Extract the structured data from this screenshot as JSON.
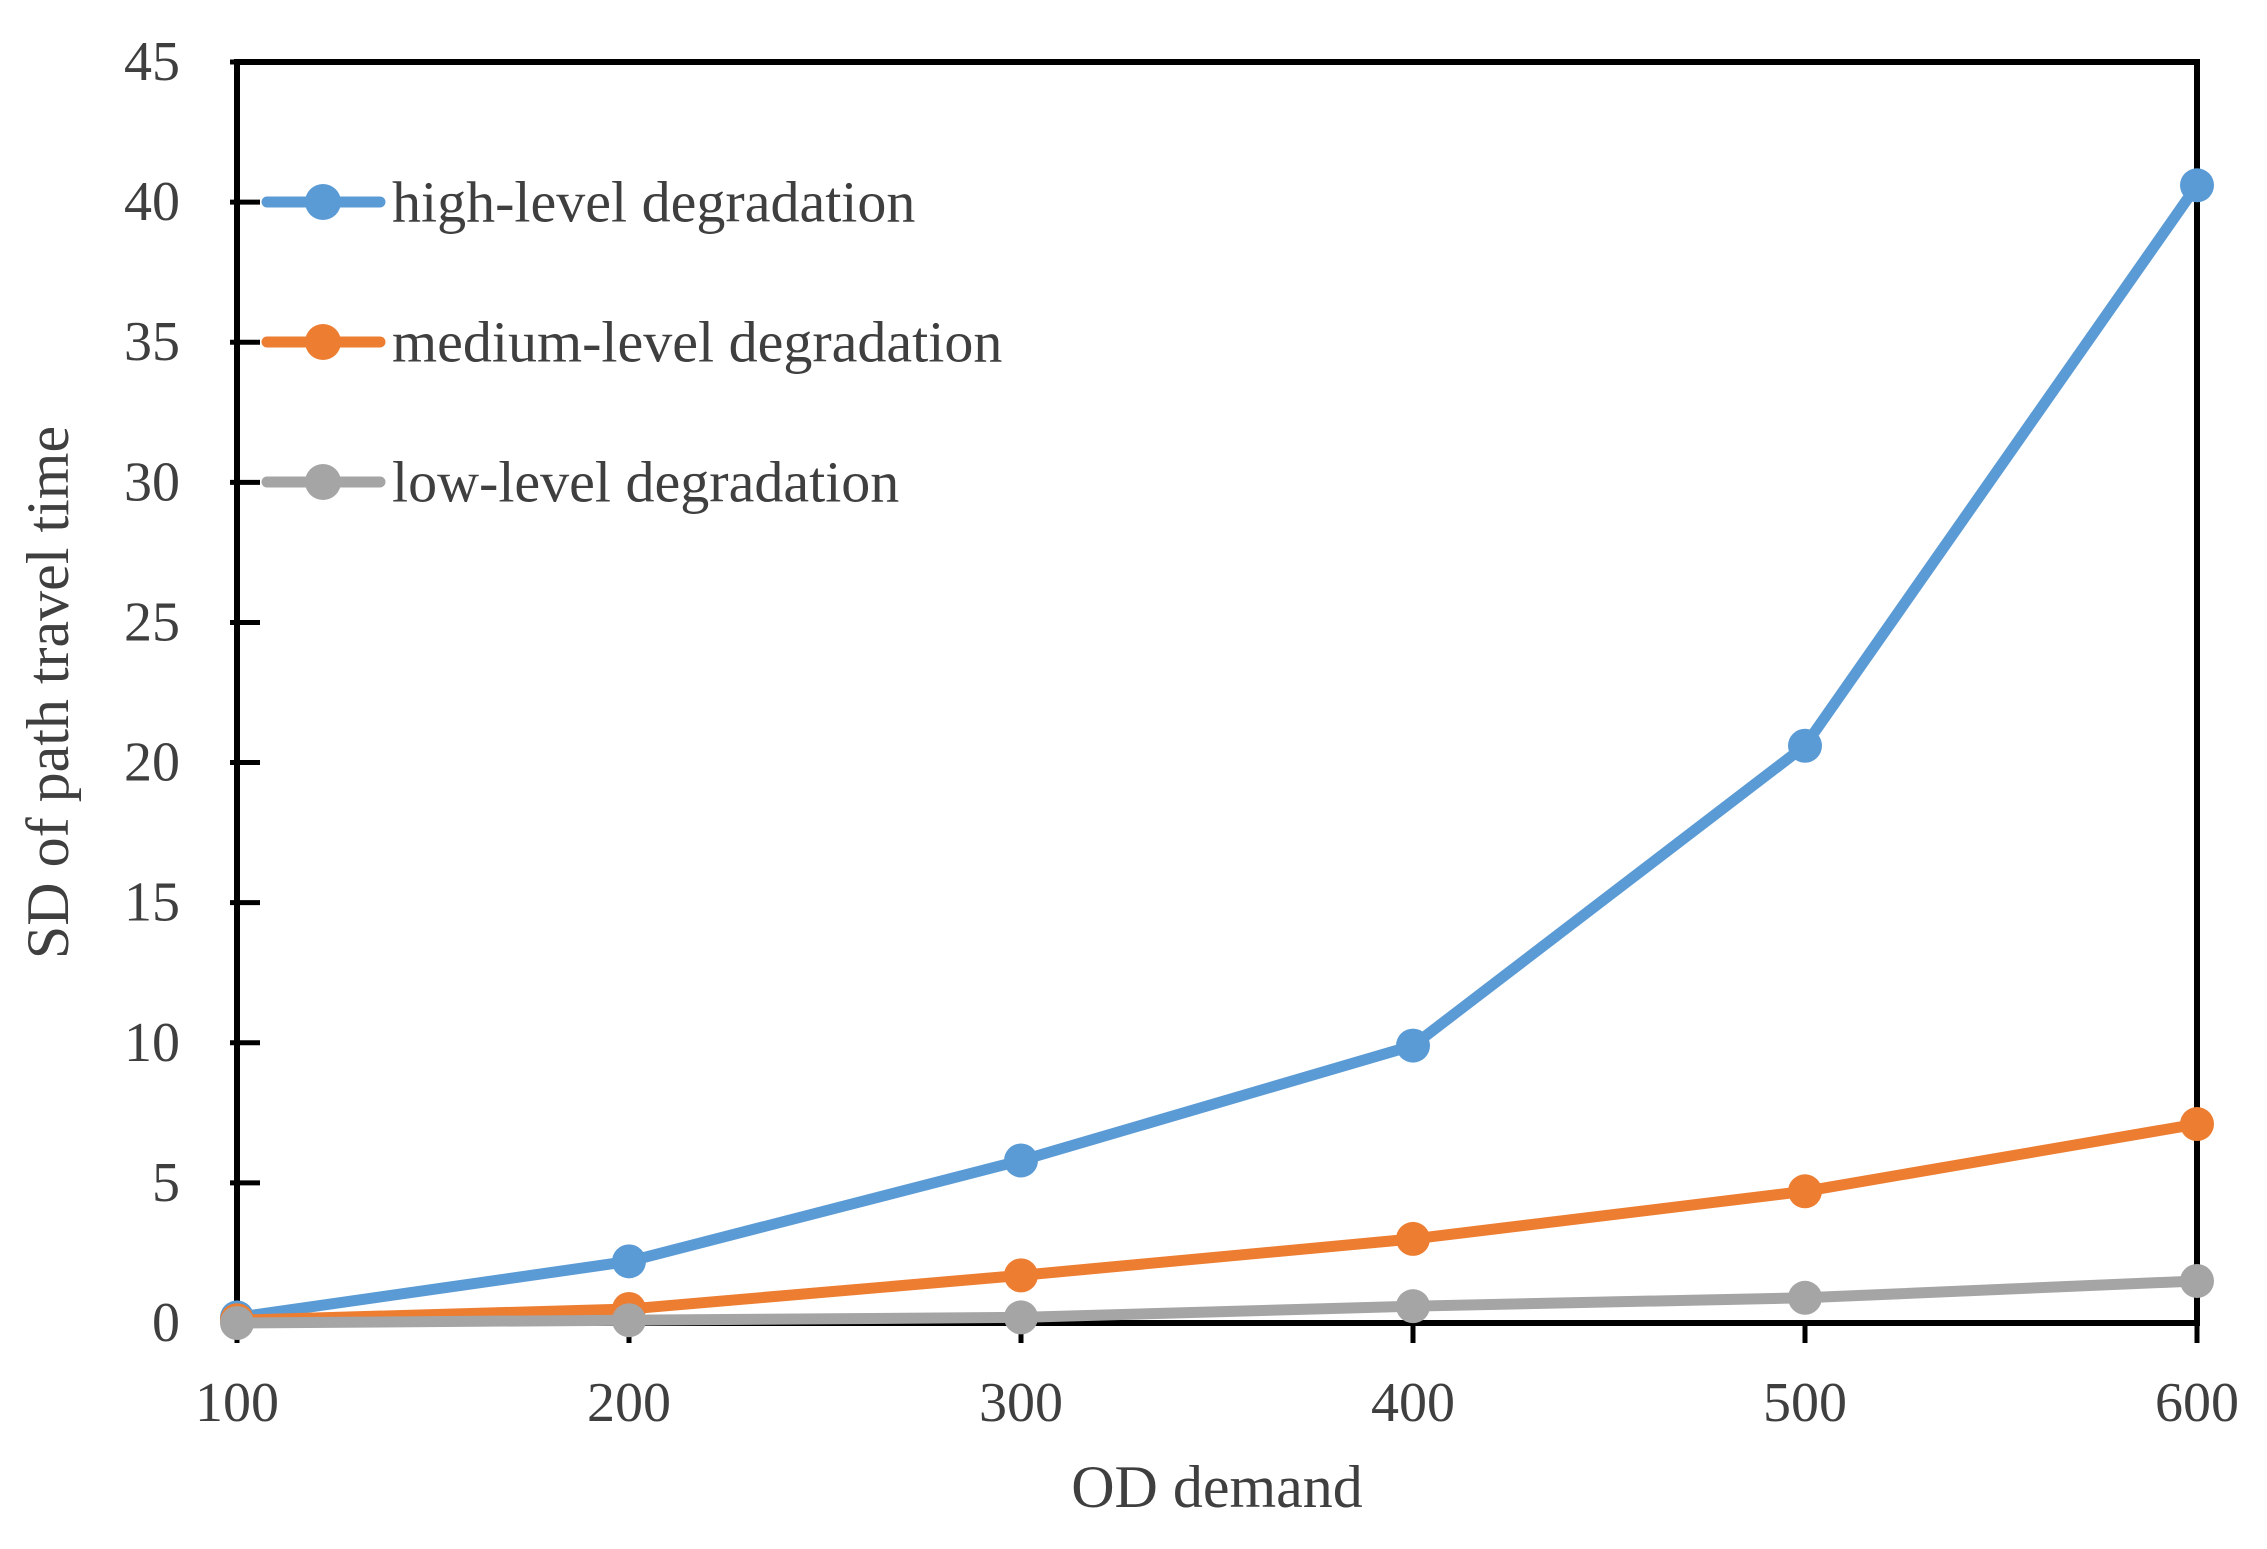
{
  "chart_data": {
    "type": "line",
    "title": "",
    "xlabel": "OD demand",
    "ylabel": "SD of path travel time",
    "x": [
      100,
      200,
      300,
      400,
      500,
      600
    ],
    "series": [
      {
        "name": "high-level degradation",
        "color": "#5B9BD5",
        "values": [
          0.2,
          2.2,
          5.8,
          9.9,
          20.6,
          40.6
        ]
      },
      {
        "name": "medium-level degradation",
        "color": "#ED7D31",
        "values": [
          0.1,
          0.5,
          1.7,
          3.0,
          4.7,
          7.1
        ]
      },
      {
        "name": "low-level degradation",
        "color": "#A5A5A5",
        "values": [
          0.0,
          0.1,
          0.2,
          0.6,
          0.9,
          1.5
        ]
      }
    ],
    "xlim": [
      100,
      600
    ],
    "ylim": [
      0,
      45
    ],
    "x_ticks": [
      100,
      200,
      300,
      400,
      500,
      600
    ],
    "y_ticks": [
      0,
      5,
      10,
      15,
      20,
      25,
      30,
      35,
      40,
      45
    ],
    "grid": "off",
    "legend_position": "inside top-left",
    "marker": "circle",
    "axis_color": "#000000",
    "text_color": "#3F3F3F"
  }
}
